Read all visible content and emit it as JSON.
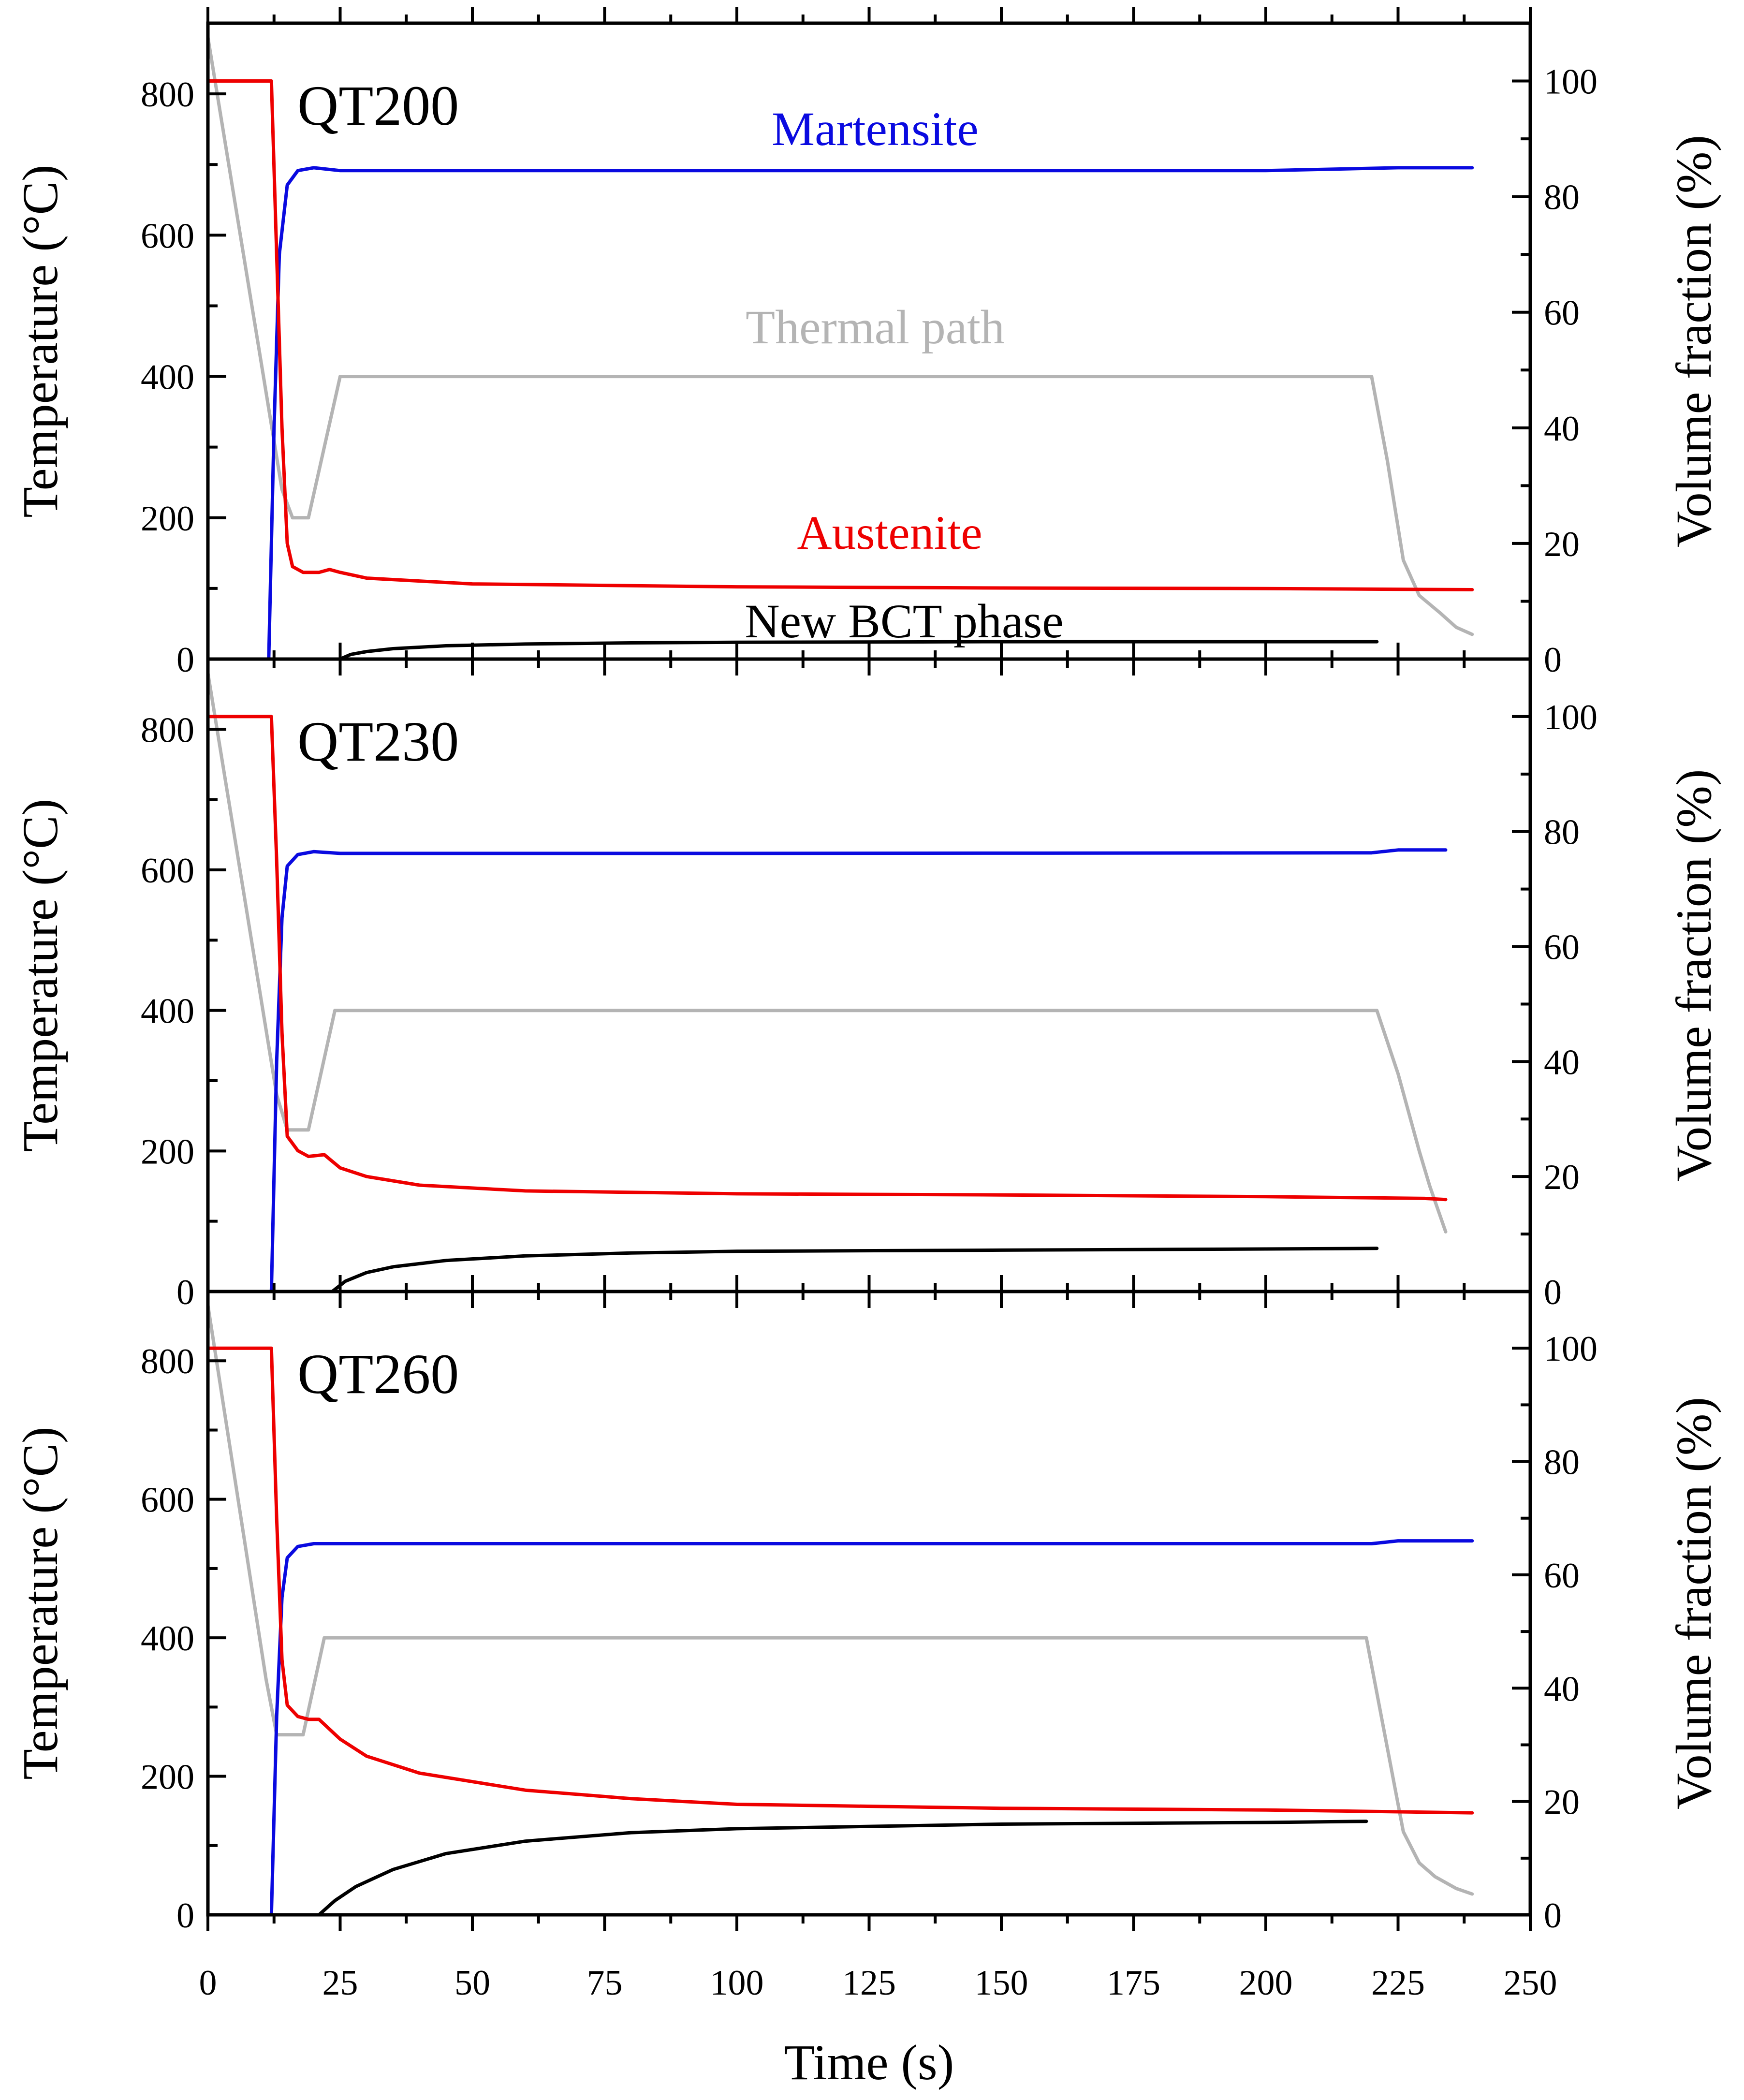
{
  "chart_data": {
    "type": "line",
    "shared_x_axis": {
      "label": "Time (s)",
      "range": [
        0,
        250
      ],
      "ticks": [
        0,
        25,
        50,
        75,
        100,
        125,
        150,
        175,
        200,
        225,
        250
      ]
    },
    "left_axis": {
      "label": "Temperature (°C)",
      "range": [
        0,
        900
      ],
      "ticks": [
        0,
        200,
        400,
        600,
        800
      ]
    },
    "right_axis": {
      "label": "Volume fraction (%)",
      "range": [
        0,
        110
      ],
      "ticks": [
        0,
        20,
        40,
        60,
        80,
        100
      ]
    },
    "annotations": {
      "martensite": "Martensite",
      "thermal_path": "Thermal path",
      "austenite": "Austenite",
      "new_bct": "New BCT phase"
    },
    "colors": {
      "martensite": "#0a0ae0",
      "austenite": "#ee0000",
      "thermal_path": "#b4b4b4",
      "new_bct": "#000000"
    },
    "panels": [
      {
        "title": "QT200",
        "series": [
          {
            "name": "Thermal path",
            "axis": "left",
            "key": "thermal_path",
            "x": [
              0,
              14,
              16,
              19,
              25,
              220,
              223,
              226,
              229,
              233,
              236,
              239
            ],
            "y": [
              880,
              240,
              200,
              200,
              400,
              400,
              280,
              140,
              90,
              65,
              45,
              35
            ]
          },
          {
            "name": "Austenite",
            "axis": "right",
            "key": "austenite",
            "x": [
              0,
              12,
              13,
              14,
              15,
              16,
              18,
              21,
              23,
              25,
              30,
              50,
              100,
              150,
              200,
              239
            ],
            "y": [
              100,
              100,
              70,
              40,
              20,
              16,
              15,
              15,
              15.5,
              15,
              14,
              13,
              12.5,
              12.3,
              12.2,
              12
            ]
          },
          {
            "name": "Martensite",
            "axis": "right",
            "key": "martensite",
            "x": [
              11.5,
              12.5,
              13.5,
              15,
              17,
              20,
              25,
              100,
              200,
              225,
              239
            ],
            "y": [
              0,
              40,
              70,
              82,
              84.5,
              85,
              84.5,
              84.5,
              84.5,
              85,
              85
            ]
          },
          {
            "name": "New BCT phase",
            "axis": "right",
            "key": "new_bct",
            "x": [
              25,
              27,
              30,
              35,
              45,
              60,
              80,
              100,
              150,
              200,
              221
            ],
            "y": [
              0,
              0.8,
              1.3,
              1.8,
              2.3,
              2.6,
              2.8,
              2.9,
              3,
              3,
              3
            ]
          }
        ]
      },
      {
        "title": "QT230",
        "series": [
          {
            "name": "Thermal path",
            "axis": "left",
            "key": "thermal_path",
            "x": [
              0,
              13,
              15,
              19,
              24,
              221,
              225,
              229,
              231,
              234
            ],
            "y": [
              880,
              280,
              230,
              230,
              400,
              400,
              310,
              200,
              150,
              85
            ]
          },
          {
            "name": "Austenite",
            "axis": "right",
            "key": "austenite",
            "x": [
              0,
              12,
              13,
              14,
              15,
              17,
              19,
              22,
              25,
              30,
              40,
              60,
              100,
              150,
              200,
              230,
              234
            ],
            "y": [
              100,
              100,
              75,
              45,
              27,
              24.5,
              23.5,
              23.8,
              21.5,
              20,
              18.5,
              17.5,
              17,
              16.8,
              16.5,
              16.2,
              16
            ]
          },
          {
            "name": "Martensite",
            "axis": "right",
            "key": "martensite",
            "x": [
              12,
              13,
              14,
              15,
              17,
              20,
              25,
              100,
              220,
              225,
              234
            ],
            "y": [
              0,
              40,
              65,
              74,
              76,
              76.5,
              76.2,
              76.2,
              76.3,
              76.8,
              76.8
            ]
          },
          {
            "name": "New BCT phase",
            "axis": "right",
            "key": "new_bct",
            "x": [
              23.5,
              26,
              30,
              35,
              45,
              60,
              80,
              100,
              150,
              200,
              221
            ],
            "y": [
              0,
              1.8,
              3.3,
              4.3,
              5.4,
              6.2,
              6.7,
              7,
              7.2,
              7.4,
              7.5
            ]
          }
        ]
      },
      {
        "title": "QT260",
        "series": [
          {
            "name": "Thermal path",
            "axis": "left",
            "key": "thermal_path",
            "x": [
              0,
              11,
              13,
              18,
              22,
              219,
              223,
              226,
              229,
              232,
              236,
              239
            ],
            "y": [
              880,
              340,
              260,
              260,
              400,
              400,
              240,
              120,
              75,
              55,
              38,
              30
            ]
          },
          {
            "name": "Austenite",
            "axis": "right",
            "key": "austenite",
            "x": [
              0,
              12,
              13,
              14,
              15,
              17,
              19,
              21,
              25,
              30,
              40,
              60,
              80,
              100,
              150,
              200,
              239
            ],
            "y": [
              100,
              100,
              70,
              45,
              37,
              35,
              34.5,
              34.5,
              31,
              28,
              25,
              22,
              20.5,
              19.5,
              18.8,
              18.5,
              18
            ]
          },
          {
            "name": "Martensite",
            "axis": "right",
            "key": "martensite",
            "x": [
              12,
              13,
              14,
              15,
              17,
              20,
              25,
              100,
              220,
              225,
              239
            ],
            "y": [
              0,
              35,
              56,
              63,
              65,
              65.5,
              65.5,
              65.5,
              65.5,
              66,
              66
            ]
          },
          {
            "name": "New BCT phase",
            "axis": "right",
            "key": "new_bct",
            "x": [
              21,
              24,
              28,
              35,
              45,
              60,
              80,
              100,
              150,
              200,
              219
            ],
            "y": [
              0,
              2.5,
              5,
              8,
              10.8,
              13,
              14.5,
              15.2,
              16,
              16.3,
              16.5
            ]
          }
        ]
      }
    ]
  }
}
